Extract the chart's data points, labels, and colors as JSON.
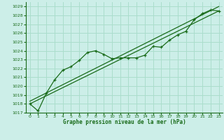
{
  "bg_color": "#cceee8",
  "grid_color": "#aaddcc",
  "line_color": "#1a6b1a",
  "title": "Graphe pression niveau de la mer (hPa)",
  "xlim": [
    -0.5,
    23.5
  ],
  "ylim": [
    1017,
    1029.5
  ],
  "yticks": [
    1017,
    1018,
    1019,
    1020,
    1021,
    1022,
    1023,
    1024,
    1025,
    1026,
    1027,
    1028,
    1029
  ],
  "xticks": [
    0,
    1,
    2,
    3,
    4,
    5,
    6,
    7,
    8,
    9,
    10,
    11,
    12,
    13,
    14,
    15,
    16,
    17,
    18,
    19,
    20,
    21,
    22,
    23
  ],
  "line1_x": [
    0,
    1,
    2,
    3,
    4,
    5,
    6,
    7,
    8,
    9,
    10,
    11,
    12,
    13,
    14,
    15,
    16,
    17,
    18,
    19,
    20,
    21,
    22,
    23
  ],
  "line1_y": [
    1018.0,
    1017.2,
    1019.2,
    1020.7,
    1021.8,
    1022.2,
    1022.9,
    1023.8,
    1024.0,
    1023.6,
    1023.1,
    1023.2,
    1023.2,
    1023.2,
    1023.5,
    1024.5,
    1024.4,
    1025.2,
    1025.8,
    1026.2,
    1027.5,
    1028.2,
    1028.6,
    1028.5
  ],
  "line2_x": [
    0,
    23
  ],
  "line2_y": [
    1018.3,
    1029.0
  ],
  "line3_x": [
    0,
    23
  ],
  "line3_y": [
    1018.0,
    1028.5
  ]
}
